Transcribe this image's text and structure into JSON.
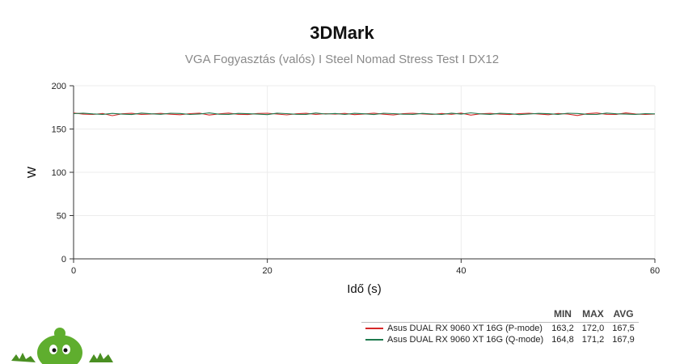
{
  "header": {
    "title": "3DMark",
    "subtitle": "VGA Fogyasztás (valós) I Steel Nomad Stress Test I DX12"
  },
  "legend": {
    "columns": [
      "MIN",
      "MAX",
      "AVG"
    ],
    "rows": [
      {
        "name": "Asus DUAL RX 9060 XT 16G (P-mode)",
        "min": "163,2",
        "max": "172,0",
        "avg": "167,5",
        "color": "#d62728"
      },
      {
        "name": "Asus DUAL RX 9060 XT 16G (Q-mode)",
        "min": "164,8",
        "max": "171,2",
        "avg": "167,9",
        "color": "#1e7a4e"
      }
    ]
  },
  "chart_data": {
    "type": "line",
    "title": "3DMark",
    "subtitle": "VGA Fogyasztás (valós) I Steel Nomad Stress Test I DX12",
    "xlabel": "Idő (s)",
    "ylabel": "W",
    "xlim": [
      0,
      60
    ],
    "ylim": [
      0,
      200
    ],
    "xticks": [
      0,
      20,
      40,
      60
    ],
    "yticks": [
      0,
      50,
      100,
      150,
      200
    ],
    "grid": true,
    "x": [
      0,
      1,
      2,
      3,
      4,
      5,
      6,
      7,
      8,
      9,
      10,
      11,
      12,
      13,
      14,
      15,
      16,
      17,
      18,
      19,
      20,
      21,
      22,
      23,
      24,
      25,
      26,
      27,
      28,
      29,
      30,
      31,
      32,
      33,
      34,
      35,
      36,
      37,
      38,
      39,
      40,
      41,
      42,
      43,
      44,
      45,
      46,
      47,
      48,
      49,
      50,
      51,
      52,
      53,
      54,
      55,
      56,
      57,
      58,
      59,
      60
    ],
    "series": [
      {
        "name": "Asus DUAL RX 9060 XT 16G (P-mode)",
        "color": "#d62728",
        "values": [
          168.5,
          167.2,
          166.8,
          167.9,
          165.4,
          167.6,
          168.1,
          166.9,
          167.4,
          168.0,
          167.1,
          166.5,
          167.8,
          168.3,
          166.2,
          167.5,
          168.4,
          167.0,
          166.7,
          167.9,
          168.2,
          167.3,
          166.4,
          167.6,
          168.1,
          166.9,
          167.8,
          167.2,
          168.0,
          166.6,
          167.4,
          168.3,
          167.1,
          166.3,
          167.7,
          168.2,
          167.5,
          166.8,
          167.9,
          167.0,
          168.4,
          166.1,
          167.6,
          168.0,
          167.2,
          166.7,
          167.8,
          168.1,
          167.4,
          166.5,
          167.9,
          167.3,
          165.6,
          167.7,
          168.5,
          167.0,
          166.8,
          168.6,
          167.4,
          166.9,
          167.3
        ]
      },
      {
        "name": "Asus DUAL RX 9060 XT 16G (Q-mode)",
        "color": "#1e7a4e",
        "values": [
          167.8,
          168.3,
          167.5,
          166.9,
          168.0,
          167.2,
          166.7,
          168.4,
          167.6,
          167.0,
          168.2,
          167.9,
          166.8,
          167.4,
          168.6,
          167.1,
          166.9,
          168.0,
          167.7,
          167.2,
          166.6,
          168.3,
          167.8,
          167.0,
          166.9,
          168.5,
          167.3,
          167.9,
          166.8,
          168.1,
          167.6,
          166.7,
          168.2,
          167.8,
          167.1,
          166.9,
          168.0,
          167.4,
          166.8,
          168.3,
          167.2,
          168.7,
          167.5,
          166.9,
          168.1,
          167.8,
          166.6,
          167.3,
          168.0,
          167.7,
          166.9,
          168.2,
          167.9,
          167.0,
          166.8,
          168.4,
          167.6,
          167.2,
          166.9,
          167.8,
          167.5
        ]
      }
    ]
  },
  "mascot": {
    "icon": "green-alien-mascot-icon",
    "color": "#5fae2e"
  }
}
